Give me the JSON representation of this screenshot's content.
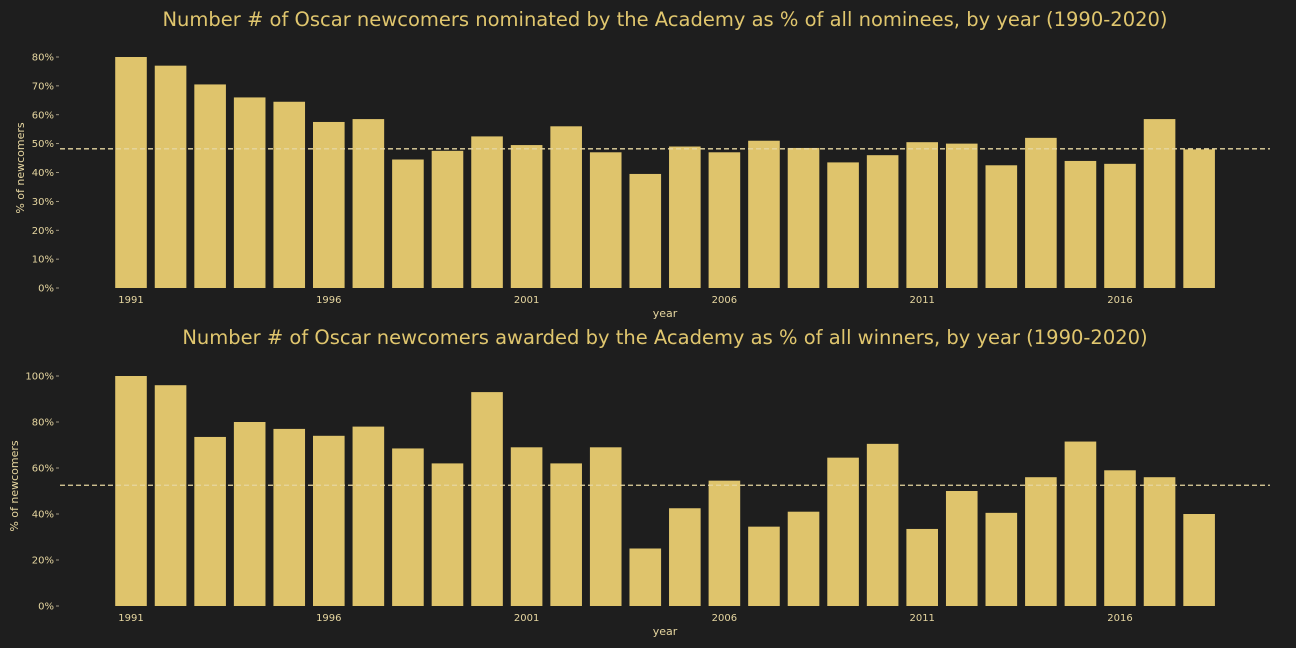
{
  "chart_data": [
    {
      "type": "bar",
      "title": "Number # of Oscar newcomers nominated by the Academy as % of all nominees, by year (1990-2020)",
      "xlabel": "year",
      "ylabel": "% of newcomers",
      "x": [
        1991,
        1992,
        1993,
        1994,
        1995,
        1996,
        1997,
        1998,
        1999,
        2000,
        2001,
        2002,
        2003,
        2004,
        2005,
        2006,
        2007,
        2008,
        2009,
        2010,
        2011,
        2012,
        2013,
        2014,
        2015,
        2016,
        2017,
        2018
      ],
      "values": [
        80,
        77,
        70.5,
        66,
        64.5,
        57.5,
        58.5,
        44.5,
        47.5,
        52.5,
        49.5,
        56,
        47,
        39.5,
        49,
        47,
        51,
        48.5,
        43.5,
        46,
        50.5,
        50,
        42.5,
        52,
        44,
        43,
        58.5,
        48
      ],
      "mean_line": 48.2,
      "ylim": [
        0,
        85
      ],
      "yticks": [
        0,
        10,
        20,
        30,
        40,
        50,
        60,
        70,
        80
      ],
      "ytick_labels": [
        "0%",
        "10%",
        "20%",
        "30%",
        "40%",
        "50%",
        "60%",
        "70%",
        "80%"
      ],
      "xticks": [
        1991,
        1996,
        2001,
        2006,
        2011,
        2016
      ],
      "bar_color": "#dfc46c",
      "mean_line_color": "#e6d6a0"
    },
    {
      "type": "bar",
      "title": "Number # of Oscar newcomers awarded by the Academy as % of all winners, by year (1990-2020)",
      "xlabel": "year",
      "ylabel": "% of newcomers",
      "x": [
        1991,
        1992,
        1993,
        1994,
        1995,
        1996,
        1997,
        1998,
        1999,
        2000,
        2001,
        2002,
        2003,
        2004,
        2005,
        2006,
        2007,
        2008,
        2009,
        2010,
        2011,
        2012,
        2013,
        2014,
        2015,
        2016,
        2017,
        2018
      ],
      "values": [
        100,
        96,
        73.5,
        80,
        77,
        74,
        78,
        68.5,
        62,
        93,
        69,
        62,
        69,
        25,
        42.5,
        54.5,
        34.5,
        41,
        64.5,
        70.5,
        33.5,
        50,
        40.5,
        56,
        71.5,
        59,
        56,
        40
      ],
      "mean_line": 52.5,
      "ylim": [
        0,
        100
      ],
      "yticks": [
        0,
        20,
        40,
        60,
        80,
        100
      ],
      "ytick_labels": [
        "0%",
        "20%",
        "40%",
        "60%",
        "80%",
        "100%"
      ],
      "xticks": [
        1991,
        1996,
        2001,
        2006,
        2011,
        2016
      ],
      "bar_color": "#dfc46c",
      "mean_line_color": "#e6d6a0"
    }
  ]
}
